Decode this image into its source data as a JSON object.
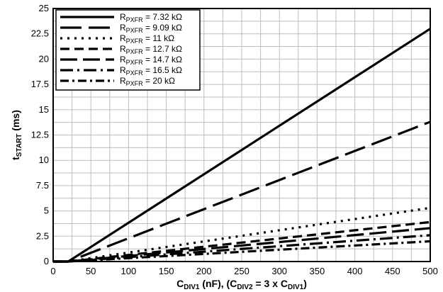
{
  "chart_data": {
    "type": "line",
    "title": "",
    "xlabel": {
      "main": "C",
      "sub": "DIV1",
      "rest": " (nF), (C",
      "sub2": "DIV2",
      "rest2": " = 3 x C",
      "sub3": "DIV1",
      "end": ")"
    },
    "ylabel": {
      "main": "t",
      "sub": "START",
      "rest": " (ms)"
    },
    "xlim": [
      0,
      500
    ],
    "ylim": [
      0,
      25
    ],
    "x_ticks": [
      "0",
      "50",
      "100",
      "150",
      "200",
      "250",
      "300",
      "350",
      "400",
      "450",
      "500"
    ],
    "y_ticks": [
      "0",
      "2.5",
      "5",
      "7.5",
      "10",
      "12.5",
      "15",
      "17.5",
      "20",
      "22.5",
      "25"
    ],
    "grid": true,
    "legend_position": "top-left",
    "series": [
      {
        "label_main": "R",
        "label_sub": "PXFR",
        "label_rest": " = 7.32 kΩ",
        "dash": "solid",
        "x": [
          0,
          20,
          500
        ],
        "y": [
          0,
          0,
          23.0
        ]
      },
      {
        "label_main": "R",
        "label_sub": "PXFR",
        "label_rest": " = 9.09 kΩ",
        "dash": "long",
        "x": [
          0,
          20,
          500
        ],
        "y": [
          0,
          0,
          13.8
        ]
      },
      {
        "label_main": "R",
        "label_sub": "PXFR",
        "label_rest": " = 11 kΩ",
        "dash": "dot",
        "x": [
          0,
          20,
          500
        ],
        "y": [
          0,
          0,
          5.3
        ]
      },
      {
        "label_main": "R",
        "label_sub": "PXFR",
        "label_rest": " = 12.7 kΩ",
        "dash": "dash",
        "x": [
          0,
          20,
          500
        ],
        "y": [
          0,
          0,
          3.9
        ]
      },
      {
        "label_main": "R",
        "label_sub": "PXFR",
        "label_rest": " = 14.7 kΩ",
        "dash": "longgap",
        "x": [
          0,
          20,
          500
        ],
        "y": [
          0,
          0,
          3.3
        ]
      },
      {
        "label_main": "R",
        "label_sub": "PXFR",
        "label_rest": " = 16.5 kΩ",
        "dash": "dashdot",
        "x": [
          0,
          20,
          500
        ],
        "y": [
          0,
          0,
          2.6
        ]
      },
      {
        "label_main": "R",
        "label_sub": "PXFR",
        "label_rest": " = 20 kΩ",
        "dash": "longdot",
        "x": [
          0,
          20,
          500
        ],
        "y": [
          0,
          0,
          2.0
        ]
      }
    ]
  }
}
